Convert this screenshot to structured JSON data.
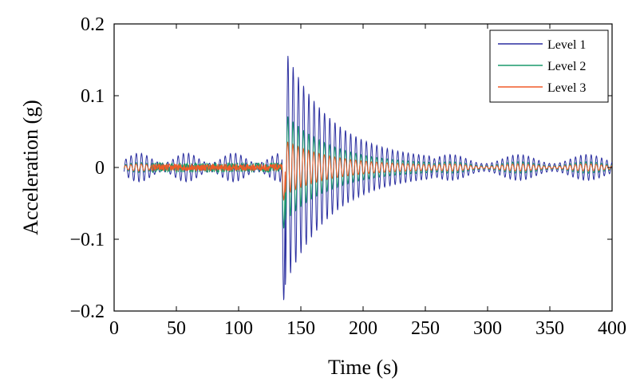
{
  "chart_data": {
    "type": "line",
    "title": "",
    "xlabel": "Time (s)",
    "ylabel": "Acceleration (g)",
    "xlim": [
      0,
      400
    ],
    "ylim": [
      -0.2,
      0.2
    ],
    "xticks": [
      0,
      50,
      100,
      150,
      200,
      250,
      300,
      350,
      400
    ],
    "xtick_labels": [
      "0",
      "50",
      "100",
      "150",
      "200",
      "250",
      "300",
      "350",
      "400"
    ],
    "yticks": [
      -0.2,
      -0.1,
      0,
      0.1,
      0.2
    ],
    "ytick_labels": [
      "−0.2",
      "−0.1",
      "0",
      "0.1",
      "0.2"
    ],
    "grid": false,
    "legend_position": "top-right",
    "data_start": 8,
    "data_end": 400,
    "event_time": 135,
    "series": [
      {
        "name": "Level 1",
        "color": "#2b2fa0",
        "pre_event_amplitude": 0.02,
        "peak_amplitude": 0.175,
        "peak_negative": -0.185,
        "decay_end_time": 255,
        "post_decay_amplitude": 0.018,
        "dominant_period_s": 4.2
      },
      {
        "name": "Level 2",
        "color": "#1a9a6c",
        "pre_event_amplitude": 0.007,
        "peak_amplitude": 0.08,
        "peak_negative": -0.085,
        "decay_end_time": 255,
        "post_decay_amplitude": 0.008,
        "dominant_period_s": 4.2
      },
      {
        "name": "Level 3",
        "color": "#f05a28",
        "pre_event_amplitude": 0.005,
        "peak_amplitude": 0.04,
        "peak_negative": -0.045,
        "decay_end_time": 255,
        "post_decay_amplitude": 0.005,
        "dominant_period_s": 4.2
      }
    ]
  }
}
